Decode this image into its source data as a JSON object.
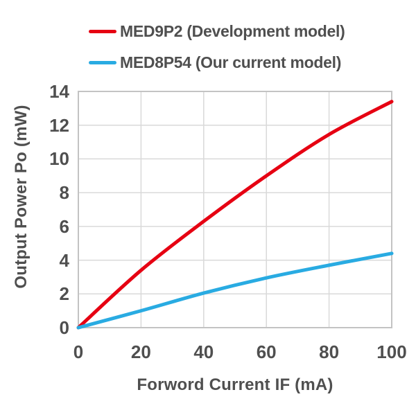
{
  "chart_data": {
    "type": "line",
    "x": [
      0,
      20,
      40,
      60,
      80,
      100
    ],
    "series": [
      {
        "name": "MED9P2 (Development model)",
        "color": "#e60012",
        "values": [
          0,
          3.4,
          6.3,
          9.0,
          11.45,
          13.4
        ]
      },
      {
        "name": "MED8P54 (Our current model)",
        "color": "#29abe2",
        "values": [
          0,
          1.0,
          2.05,
          2.95,
          3.7,
          4.4
        ]
      }
    ],
    "xlabel": "Forword Current IF (mA)",
    "ylabel": "Output Power Po (mW)",
    "xlim": [
      0,
      100
    ],
    "ylim": [
      0,
      14
    ],
    "x_ticks": [
      0,
      20,
      40,
      60,
      80,
      100
    ],
    "y_ticks": [
      0,
      2,
      4,
      6,
      8,
      10,
      12,
      14
    ],
    "grid": true,
    "legend_position": "top"
  },
  "colors": {
    "grid": "#d9d9d9",
    "plot_border": "#c3c3c3",
    "text": "#4f4f4f",
    "background": "#ffffff"
  }
}
